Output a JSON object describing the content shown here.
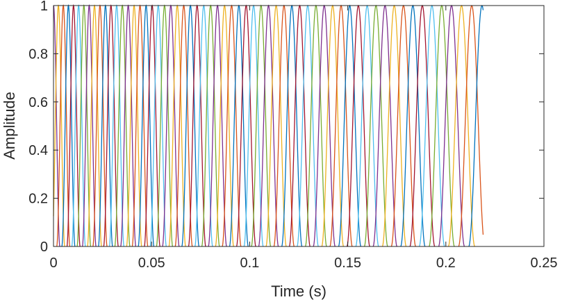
{
  "chart_data": {
    "type": "line",
    "title": "",
    "xlabel": "Time (s)",
    "ylabel": "Amplitude",
    "xlim": [
      0,
      0.25
    ],
    "ylim": [
      0,
      1
    ],
    "xticks": [
      "0",
      "0.05",
      "0.1",
      "0.15",
      "0.2",
      "0.25"
    ],
    "xtick_values": [
      0,
      0.05,
      0.1,
      0.15,
      0.2,
      0.25
    ],
    "yticks": [
      "0",
      "0.2",
      "0.4",
      "0.6",
      "0.8",
      "1"
    ],
    "ytick_values": [
      0,
      0.2,
      0.4,
      0.6,
      0.8,
      1
    ],
    "grid": false,
    "signal_end_time": 0.219,
    "window_shape": "raised-cosine pulses, peak amplitude 1",
    "window_centers": [
      0,
      0.0025,
      0.005,
      0.0076,
      0.0102,
      0.0128,
      0.0155,
      0.0182,
      0.0209,
      0.0237,
      0.0265,
      0.0293,
      0.0322,
      0.0351,
      0.0381,
      0.0411,
      0.0441,
      0.0472,
      0.0503,
      0.0534,
      0.0566,
      0.0598,
      0.0631,
      0.0664,
      0.0698,
      0.0732,
      0.0766,
      0.0801,
      0.0836,
      0.0872,
      0.0908,
      0.0945,
      0.0982,
      0.102,
      0.1058,
      0.1096,
      0.1135,
      0.1175,
      0.1215,
      0.1255,
      0.1296,
      0.1338,
      0.138,
      0.1423,
      0.1466,
      0.151,
      0.1554,
      0.1599,
      0.1644,
      0.169,
      0.1737,
      0.1784,
      0.1832,
      0.188,
      0.1929,
      0.1979,
      0.2029,
      0.208,
      0.2132,
      0.2184
    ],
    "colors": [
      "#0072BD",
      "#D95319",
      "#EDB120",
      "#7E2F8E",
      "#77AC30",
      "#4DBEEE",
      "#A2142F"
    ]
  }
}
